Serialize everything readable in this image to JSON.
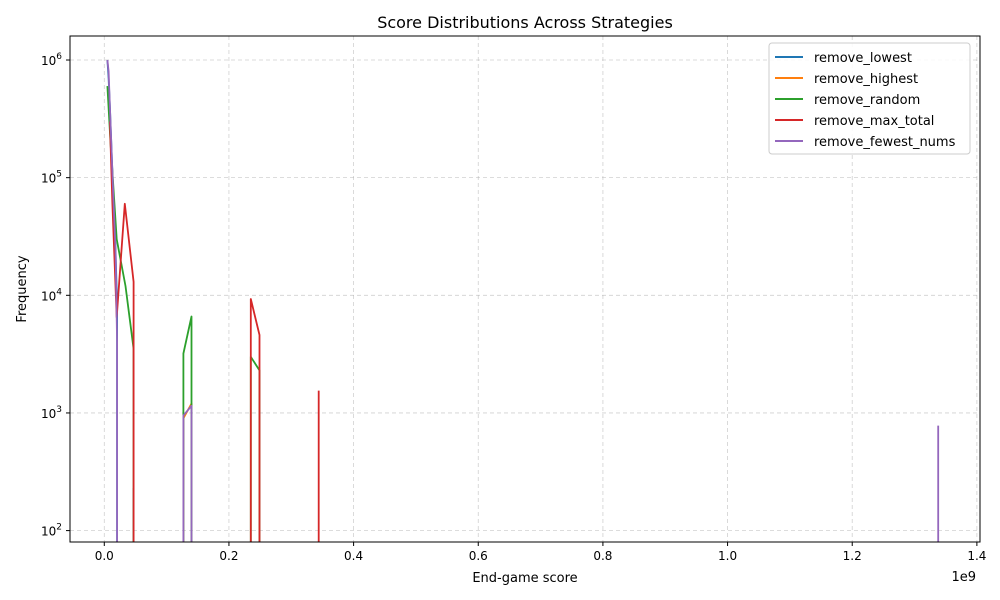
{
  "chart_data": {
    "type": "line",
    "title": "Score Distributions Across Strategies",
    "xlabel": "End-game score",
    "ylabel": "Frequency",
    "x_offset_label": "1e9",
    "x_scale": "linear",
    "y_scale": "log",
    "xlim": [
      -0.055,
      1.405
    ],
    "ylim": [
      80,
      1600000
    ],
    "x_units": "×1e9",
    "xticks": [
      0.0,
      0.2,
      0.4,
      0.6,
      0.8,
      1.0,
      1.2,
      1.4
    ],
    "xtick_labels": [
      "0.0",
      "0.2",
      "0.4",
      "0.6",
      "0.8",
      "1.0",
      "1.2",
      "1.4"
    ],
    "yticks": [
      100,
      1000,
      10000,
      100000,
      1000000
    ],
    "ytick_labels": [
      "10",
      "10",
      "10",
      "10",
      "10"
    ],
    "ytick_exponents": [
      "2",
      "3",
      "4",
      "5",
      "6"
    ],
    "grid": true,
    "legend_position": "top-right",
    "series": [
      {
        "name": "remove_lowest",
        "color": "#1f77b4",
        "x": [
          0.005,
          0.007,
          0.009,
          0.012,
          0.015,
          0.018,
          0.0205,
          0.0205,
          0.047,
          0.047
        ],
        "y": [
          1000000,
          700000,
          400000,
          150000,
          60000,
          25000,
          8000,
          60,
          60,
          230
        ]
      },
      {
        "name": "remove_highest",
        "color": "#ff7f0e",
        "x": [
          0.127,
          0.127,
          0.14,
          0.14
        ],
        "y": [
          60,
          900,
          1200,
          60
        ]
      },
      {
        "name": "remove_random",
        "color": "#2ca02c",
        "x": [
          0.005,
          0.01,
          0.02,
          0.034,
          0.047,
          0.047,
          0.127,
          0.127,
          0.14,
          0.14,
          0.235,
          0.235,
          0.249,
          0.249
        ],
        "y": [
          600000,
          200000,
          30000,
          12000,
          3500,
          60,
          60,
          3200,
          6600,
          60,
          60,
          3000,
          2300,
          60
        ]
      },
      {
        "name": "remove_max_total",
        "color": "#d62728",
        "x": [
          0.009,
          0.013,
          0.02,
          0.033,
          0.047,
          0.047,
          0.235,
          0.235,
          0.249,
          0.249,
          0.344,
          0.344
        ],
        "y": [
          300000,
          60000,
          6500,
          60000,
          13000,
          60,
          60,
          9300,
          4600,
          60,
          60,
          1550
        ]
      },
      {
        "name": "remove_fewest_nums",
        "color": "#9467bd",
        "x": [
          0.005,
          0.007,
          0.009,
          0.012,
          0.015,
          0.018,
          0.0205,
          0.0205,
          0.127,
          0.127,
          0.14,
          0.14,
          1.338,
          1.338
        ],
        "y": [
          1000000,
          800000,
          400000,
          150000,
          60000,
          25000,
          4000,
          60,
          60,
          950,
          1150,
          60,
          60,
          780
        ]
      }
    ]
  }
}
